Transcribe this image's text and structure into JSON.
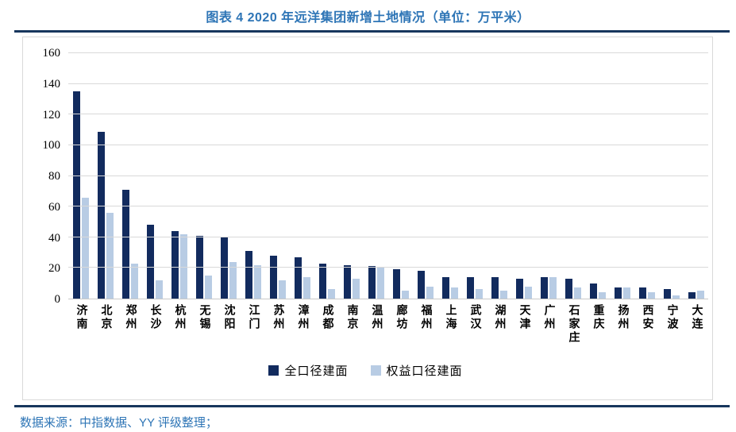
{
  "title": "图表 4 2020 年远洋集团新增土地情况（单位：万平米）",
  "footer": {
    "source_text": "数据来源：中指数据、YY 评级整理；"
  },
  "colors": {
    "title_blue": "#2E75B6",
    "rule_navy": "#17365D",
    "grid_gray": "#D9D9D9",
    "bar_dark": "#122B5E",
    "bar_light": "#B8CCE4"
  },
  "chart_data": {
    "type": "bar",
    "title": "图表 4 2020 年远洋集团新增土地情况（单位：万平米）",
    "xlabel": "",
    "ylabel": "",
    "ylim": [
      0,
      160
    ],
    "yticks": [
      0,
      20,
      40,
      60,
      80,
      100,
      120,
      140,
      160
    ],
    "grid": "horizontal",
    "legend_position": "bottom",
    "categories": [
      "济南",
      "北京",
      "郑州",
      "长沙",
      "杭州",
      "无锡",
      "沈阳",
      "江门",
      "苏州",
      "漳州",
      "成都",
      "南京",
      "温州",
      "廊坊",
      "福州",
      "上海",
      "武汉",
      "湖州",
      "天津",
      "广州",
      "石家庄",
      "重庆",
      "扬州",
      "西安",
      "宁波",
      "大连"
    ],
    "series": [
      {
        "name": "全口径建面",
        "color": "#122B5E",
        "values": [
          135,
          109,
          71,
          48,
          44,
          41,
          40,
          31,
          28,
          27,
          23,
          22,
          21,
          19,
          18,
          14,
          14,
          14,
          13,
          14,
          13,
          10,
          7,
          7,
          6,
          4
        ]
      },
      {
        "name": "权益口径建面",
        "color": "#B8CCE4",
        "values": [
          66,
          56,
          23,
          12,
          42,
          15,
          24,
          22,
          12,
          14,
          6,
          13,
          20,
          5,
          8,
          7,
          6,
          5,
          8,
          14,
          7,
          4,
          7,
          4,
          2,
          5
        ]
      }
    ]
  }
}
